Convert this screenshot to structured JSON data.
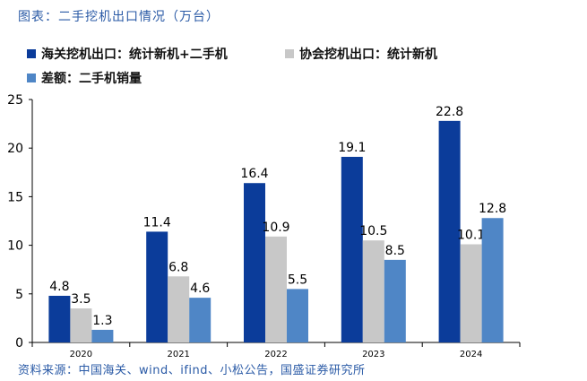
{
  "caption": "图表：二手挖机出口情况（万台）",
  "source": "资料来源：中国海关、wind、ifind、小松公告，国盛证券研究所",
  "chart_data": {
    "type": "bar",
    "categories": [
      "2020",
      "2021",
      "2022",
      "2023",
      "2024"
    ],
    "series": [
      {
        "name": "海关挖机出口：统计新机+二手机",
        "color": "#0b3c9a",
        "values": [
          4.8,
          11.4,
          16.4,
          19.1,
          22.8
        ]
      },
      {
        "name": "协会挖机出口：统计新机",
        "color": "#c8c8c8",
        "values": [
          3.5,
          6.8,
          10.9,
          10.5,
          10.1
        ]
      },
      {
        "name": "差额：二手机销量",
        "color": "#4f86c6",
        "values": [
          1.3,
          4.6,
          5.5,
          8.5,
          12.8
        ]
      }
    ],
    "ylim": [
      0,
      25
    ],
    "yticks": [
      "0",
      "5",
      "10",
      "15",
      "20",
      "25"
    ],
    "grid": false,
    "legend": "top"
  }
}
